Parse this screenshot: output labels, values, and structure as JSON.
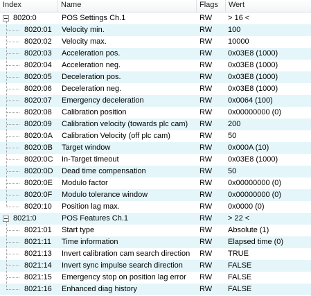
{
  "columns": {
    "index": "Index",
    "name": "Name",
    "flags": "Flags",
    "value": "Wert"
  },
  "groups": [
    {
      "index": "8020:0",
      "name": "POS Settings Ch.1",
      "flags": "RW",
      "value": "> 16 <",
      "expanded": true,
      "items": [
        {
          "index": "8020:01",
          "name": "Velocity min.",
          "flags": "RW",
          "value": "100"
        },
        {
          "index": "8020:02",
          "name": "Velocity max.",
          "flags": "RW",
          "value": "10000"
        },
        {
          "index": "8020:03",
          "name": "Acceleration pos.",
          "flags": "RW",
          "value": "0x03E8 (1000)"
        },
        {
          "index": "8020:04",
          "name": "Acceleration neg.",
          "flags": "RW",
          "value": "0x03E8 (1000)"
        },
        {
          "index": "8020:05",
          "name": "Deceleration pos.",
          "flags": "RW",
          "value": "0x03E8 (1000)"
        },
        {
          "index": "8020:06",
          "name": "Deceleration neg.",
          "flags": "RW",
          "value": "0x03E8 (1000)"
        },
        {
          "index": "8020:07",
          "name": "Emergency deceleration",
          "flags": "RW",
          "value": "0x0064 (100)"
        },
        {
          "index": "8020:08",
          "name": "Calibration position",
          "flags": "RW",
          "value": "0x00000000 (0)"
        },
        {
          "index": "8020:09",
          "name": "Calibration velocity (towards plc cam)",
          "flags": "RW",
          "value": "200"
        },
        {
          "index": "8020:0A",
          "name": "Calibration Velocity (off plc cam)",
          "flags": "RW",
          "value": "50"
        },
        {
          "index": "8020:0B",
          "name": "Target window",
          "flags": "RW",
          "value": "0x000A (10)"
        },
        {
          "index": "8020:0C",
          "name": "In-Target timeout",
          "flags": "RW",
          "value": "0x03E8 (1000)"
        },
        {
          "index": "8020:0D",
          "name": "Dead time compensation",
          "flags": "RW",
          "value": "50"
        },
        {
          "index": "8020:0E",
          "name": "Modulo factor",
          "flags": "RW",
          "value": "0x00000000 (0)"
        },
        {
          "index": "8020:0F",
          "name": "Modulo tolerance window",
          "flags": "RW",
          "value": "0x00000000 (0)"
        },
        {
          "index": "8020:10",
          "name": "Position lag max.",
          "flags": "RW",
          "value": "0x0000 (0)"
        }
      ]
    },
    {
      "index": "8021:0",
      "name": "POS Features Ch.1",
      "flags": "RW",
      "value": "> 22 <",
      "expanded": true,
      "items": [
        {
          "index": "8021:01",
          "name": "Start type",
          "flags": "RW",
          "value": "Absolute (1)"
        },
        {
          "index": "8021:11",
          "name": "Time information",
          "flags": "RW",
          "value": "Elapsed time (0)"
        },
        {
          "index": "8021:13",
          "name": "Invert calibration cam search direction",
          "flags": "RW",
          "value": "TRUE"
        },
        {
          "index": "8021:14",
          "name": "Invert sync impulse search direction",
          "flags": "RW",
          "value": "FALSE"
        },
        {
          "index": "8021:15",
          "name": "Emergency stop on position lag error",
          "flags": "RW",
          "value": "FALSE"
        },
        {
          "index": "8021:16",
          "name": "Enhanced diag history",
          "flags": "RW",
          "value": "FALSE"
        }
      ]
    }
  ],
  "colors": {
    "alt_row": "#e4f6fa",
    "tree_line": "#9a9a9a"
  }
}
